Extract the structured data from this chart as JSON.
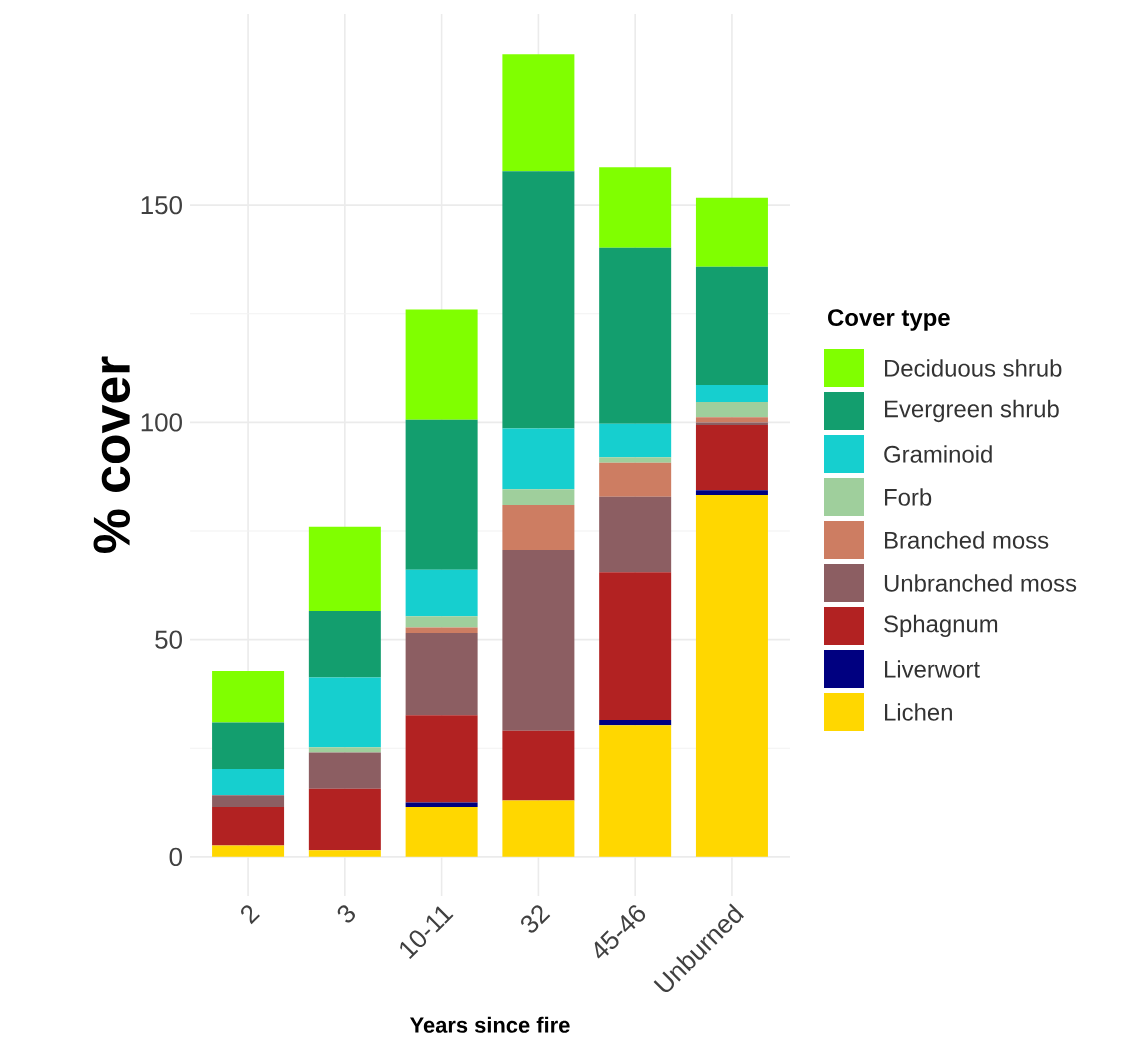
{
  "chart_data": {
    "type": "bar",
    "stacked": true,
    "xlabel": "Years since fire",
    "ylabel": "% cover",
    "legend_title": "Cover type",
    "legend": "right",
    "grid": true,
    "categories": [
      "2",
      "3",
      "10-11",
      "32",
      "45-46",
      "Unburned"
    ],
    "ylim": [
      -9,
      194
    ],
    "yticks": [
      0,
      50,
      100,
      150
    ],
    "series": [
      {
        "name": "Lichen",
        "color": "#ffd700",
        "values": [
          2.6,
          1.5,
          11.5,
          13.0,
          30.3,
          83.3
        ]
      },
      {
        "name": "Liverwort",
        "color": "#000080",
        "values": [
          0,
          0,
          1.0,
          0,
          1.2,
          1.1
        ]
      },
      {
        "name": "Sphagnum",
        "color": "#b22222",
        "values": [
          8.9,
          14.2,
          20.1,
          16.0,
          34.0,
          15.0
        ]
      },
      {
        "name": "Unbranched moss",
        "color": "#8c5e62",
        "values": [
          2.7,
          8.3,
          18.9,
          41.6,
          17.4,
          0.6
        ]
      },
      {
        "name": "Branched moss",
        "color": "#cd7d62",
        "values": [
          0,
          0,
          1.3,
          10.4,
          7.8,
          1.2
        ]
      },
      {
        "name": "Forb",
        "color": "#9fcf9c",
        "values": [
          0,
          1.2,
          2.6,
          3.6,
          1.3,
          3.5
        ]
      },
      {
        "name": "Graminoid",
        "color": "#16cfcf",
        "values": [
          6.0,
          16.1,
          10.7,
          14.0,
          7.7,
          3.9
        ]
      },
      {
        "name": "Evergreen shrub",
        "color": "#139e6e",
        "values": [
          10.7,
          15.3,
          34.5,
          59.2,
          40.5,
          27.2
        ]
      },
      {
        "name": "Deciduous shrub",
        "color": "#80ff00",
        "values": [
          11.9,
          19.4,
          25.4,
          26.9,
          18.5,
          15.9
        ]
      }
    ]
  }
}
